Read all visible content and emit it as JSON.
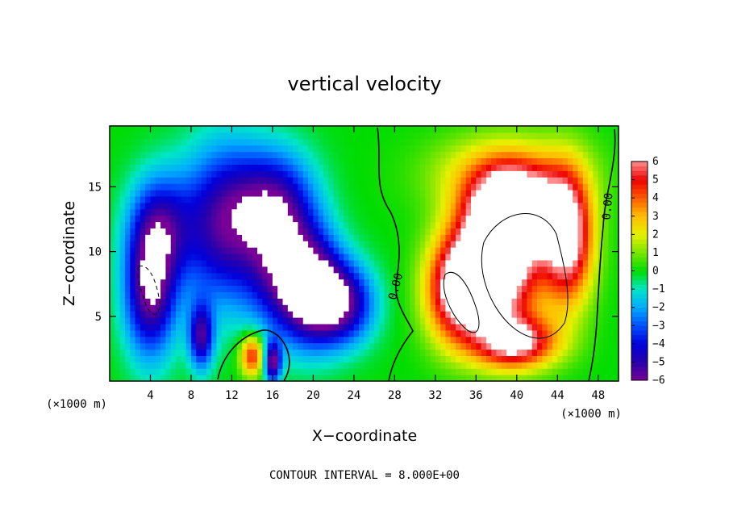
{
  "chart_data": {
    "type": "heatmap",
    "title": "vertical velocity",
    "xlabel": "X−coordinate",
    "ylabel": "Z−coordinate",
    "x_unit_label": "(×1000 m)",
    "z_unit_label": "(×1000 m)",
    "footer": "CONTOUR INTERVAL = 8.000E+00",
    "xlim": [
      0,
      50
    ],
    "ylim": [
      0,
      19.7
    ],
    "x_ticks": [
      4,
      8,
      12,
      16,
      20,
      24,
      28,
      32,
      36,
      40,
      44,
      48
    ],
    "y_ticks": [
      5,
      10,
      15
    ],
    "contour_label": "0.00",
    "colorbar": {
      "range": [
        -6,
        6
      ],
      "levels": [
        6,
        5,
        4,
        3,
        2,
        1,
        0,
        -1,
        -2,
        -3,
        -4,
        -5,
        -6
      ],
      "labels": [
        "6",
        "5",
        "4",
        "3",
        "2",
        "1",
        "0",
        "−1",
        "−2",
        "−3",
        "−4",
        "−5",
        "−6"
      ]
    },
    "field_features": [
      {
        "x": 4,
        "z": 7,
        "w": -6,
        "sx": 2.5,
        "sz": 5
      },
      {
        "x": 5,
        "z": 12,
        "w": -4,
        "sx": 3,
        "sz": 4
      },
      {
        "x": 11,
        "z": 12,
        "w": -5,
        "sx": 4,
        "sz": 6
      },
      {
        "x": 9,
        "z": 3.5,
        "w": -5,
        "sx": 1.2,
        "sz": 2.5
      },
      {
        "x": 16,
        "z": 14,
        "w": -4,
        "sx": 4,
        "sz": 4
      },
      {
        "x": 17,
        "z": 9,
        "w": -5,
        "sx": 3.5,
        "sz": 5
      },
      {
        "x": 20,
        "z": 7,
        "w": -6,
        "sx": 3,
        "sz": 4
      },
      {
        "x": 23,
        "z": 6,
        "w": -5,
        "sx": 3,
        "sz": 3
      },
      {
        "x": 14,
        "z": 2,
        "w": 5,
        "sx": 1.2,
        "sz": 1.6
      },
      {
        "x": 16,
        "z": 1.5,
        "w": -6,
        "sx": 0.8,
        "sz": 1.5
      },
      {
        "x": 38,
        "z": 9,
        "w": 9,
        "sx": 4,
        "sz": 5
      },
      {
        "x": 40,
        "z": 13,
        "w": 8,
        "sx": 4,
        "sz": 3
      },
      {
        "x": 34,
        "z": 7,
        "w": 6,
        "sx": 3,
        "sz": 4
      },
      {
        "x": 45,
        "z": 11,
        "w": 7,
        "sx": 2.5,
        "sz": 5
      },
      {
        "x": 40,
        "z": 3,
        "w": 6,
        "sx": 4,
        "sz": 2
      },
      {
        "x": 39,
        "z": 16,
        "w": 3,
        "sx": 7,
        "sz": 3
      }
    ]
  }
}
